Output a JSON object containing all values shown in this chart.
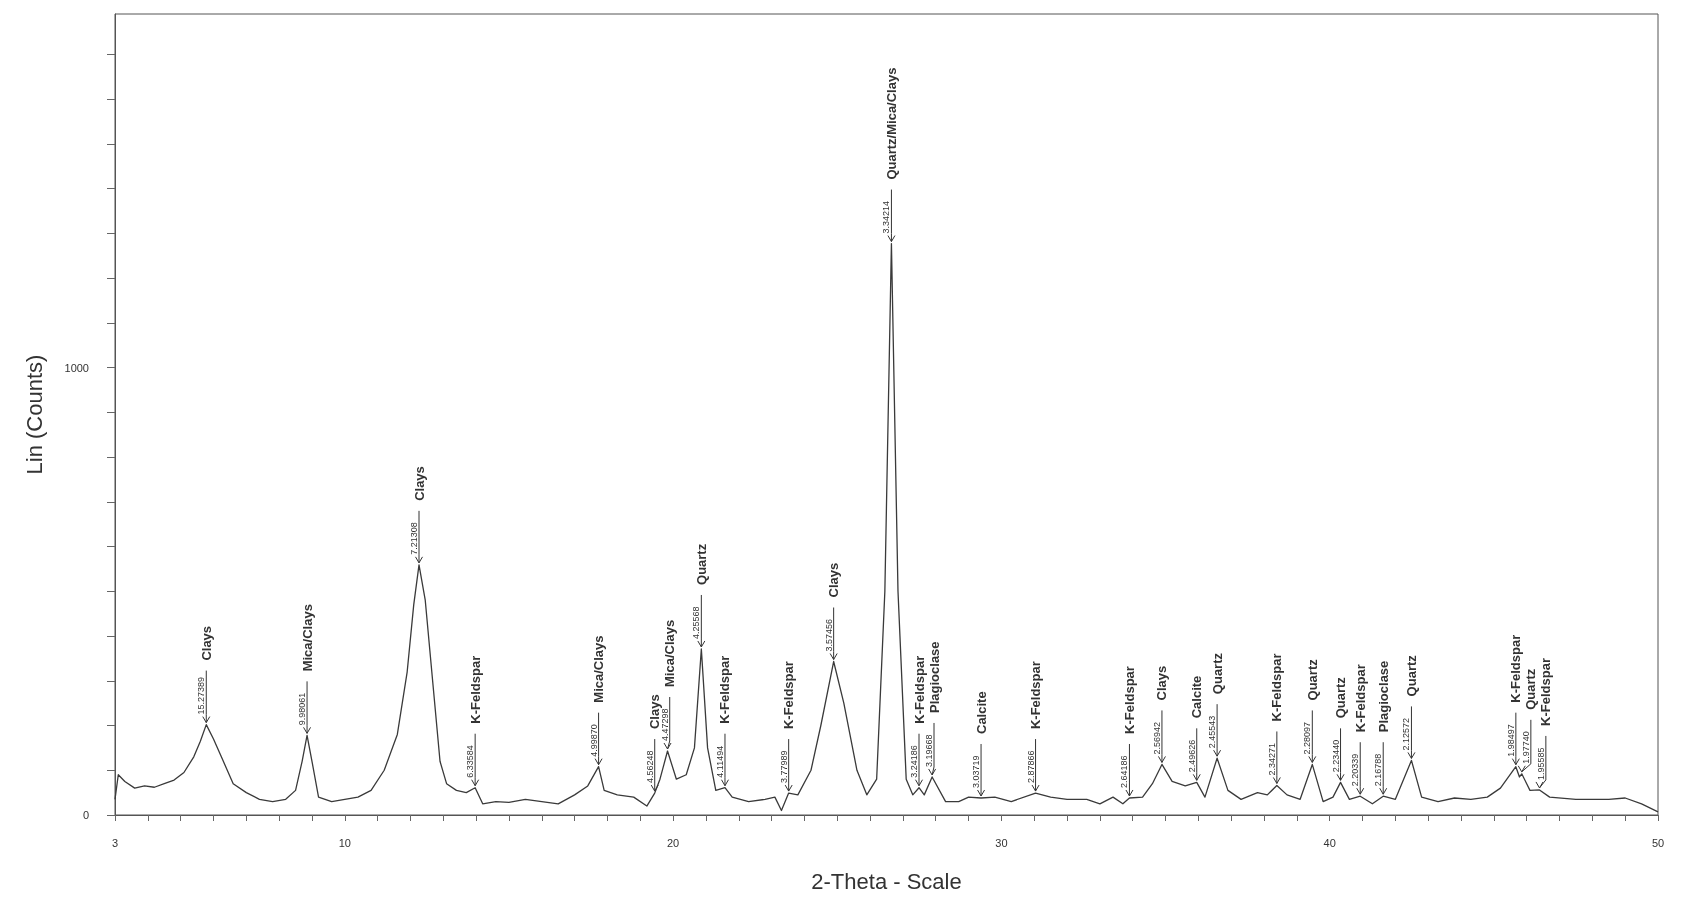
{
  "chart_data": {
    "type": "line",
    "xlabel": "2-Theta - Scale",
    "ylabel": "Lin (Counts)",
    "color": "#3a3a3a",
    "xlim": [
      3,
      50
    ],
    "xticks": [
      3,
      {
        "value": 4,
        "label": null
      },
      {
        "value": 5,
        "label": null
      },
      {
        "value": 6,
        "label": null
      },
      {
        "value": 7,
        "label": null
      },
      {
        "value": 8,
        "label": null
      },
      {
        "value": 9,
        "label": null
      },
      10,
      {
        "value": 11,
        "label": null
      },
      {
        "value": 12,
        "label": null
      },
      {
        "value": 13,
        "label": null
      },
      {
        "value": 14,
        "label": null
      },
      {
        "value": 15,
        "label": null
      },
      {
        "value": 16,
        "label": null
      },
      {
        "value": 17,
        "label": null
      },
      {
        "value": 18,
        "label": null
      },
      {
        "value": 19,
        "label": null
      },
      20,
      {
        "value": 21,
        "label": null
      },
      {
        "value": 22,
        "label": null
      },
      {
        "value": 23,
        "label": null
      },
      {
        "value": 24,
        "label": null
      },
      {
        "value": 25,
        "label": null
      },
      {
        "value": 26,
        "label": null
      },
      {
        "value": 27,
        "label": null
      },
      {
        "value": 28,
        "label": null
      },
      {
        "value": 29,
        "label": null
      },
      30,
      {
        "value": 31,
        "label": null
      },
      {
        "value": 32,
        "label": null
      },
      {
        "value": 33,
        "label": null
      },
      {
        "value": 34,
        "label": null
      },
      {
        "value": 35,
        "label": null
      },
      {
        "value": 36,
        "label": null
      },
      {
        "value": 37,
        "label": null
      },
      {
        "value": 38,
        "label": null
      },
      {
        "value": 39,
        "label": null
      },
      40,
      {
        "value": 41,
        "label": null
      },
      {
        "value": 42,
        "label": null
      },
      {
        "value": 43,
        "label": null
      },
      {
        "value": 44,
        "label": null
      },
      {
        "value": 45,
        "label": null
      },
      {
        "value": 46,
        "label": null
      },
      {
        "value": 47,
        "label": null
      },
      {
        "value": 48,
        "label": null
      },
      {
        "value": 49,
        "label": null
      },
      50
    ],
    "ylim": [
      0,
      1790
    ],
    "yticks": [
      0,
      {
        "value": 100,
        "label": null
      },
      {
        "value": 200,
        "label": null
      },
      {
        "value": 300,
        "label": null
      },
      {
        "value": 400,
        "label": null
      },
      {
        "value": 500,
        "label": null
      },
      {
        "value": 600,
        "label": null
      },
      {
        "value": 700,
        "label": null
      },
      {
        "value": 800,
        "label": null
      },
      {
        "value": 900,
        "label": null
      },
      1000,
      {
        "value": 1100,
        "label": null
      },
      {
        "value": 1200,
        "label": null
      },
      {
        "value": 1300,
        "label": null
      },
      {
        "value": 1400,
        "label": null
      },
      {
        "value": 1500,
        "label": null
      },
      {
        "value": 1600,
        "label": null
      },
      {
        "value": 1700,
        "label": null
      }
    ],
    "grid": false,
    "marker": "none",
    "line_style": "solid",
    "x": [
      3,
      3.1,
      3.3,
      3.6,
      3.9,
      4.2,
      4.5,
      4.8,
      5.1,
      5.4,
      5.6,
      5.78,
      6.0,
      6.3,
      6.6,
      7.0,
      7.4,
      7.8,
      8.2,
      8.5,
      8.7,
      8.85,
      9.0,
      9.2,
      9.6,
      10.0,
      10.4,
      10.8,
      11.2,
      11.6,
      11.9,
      12.1,
      12.26,
      12.45,
      12.7,
      12.9,
      13.1,
      13.4,
      13.7,
      13.97,
      14.2,
      14.6,
      15.0,
      15.5,
      16.0,
      16.5,
      17.0,
      17.4,
      17.73,
      17.9,
      18.3,
      18.8,
      19.2,
      19.44,
      19.6,
      19.83,
      20.1,
      20.4,
      20.65,
      20.86,
      21.05,
      21.3,
      21.58,
      21.8,
      22.3,
      22.8,
      23.1,
      23.3,
      23.52,
      23.8,
      24.2,
      24.5,
      24.89,
      25.2,
      25.6,
      25.9,
      26.2,
      26.45,
      26.65,
      26.85,
      27.1,
      27.3,
      27.49,
      27.65,
      27.89,
      28.3,
      28.7,
      29.0,
      29.38,
      29.8,
      30.3,
      31.04,
      31.5,
      32.0,
      32.6,
      33.0,
      33.4,
      33.7,
      33.9,
      34.3,
      34.6,
      34.89,
      35.2,
      35.6,
      35.95,
      36.2,
      36.57,
      36.9,
      37.3,
      37.8,
      38.1,
      38.39,
      38.7,
      39.1,
      39.47,
      39.8,
      40.1,
      40.33,
      40.6,
      40.93,
      41.3,
      41.63,
      42.0,
      42.49,
      42.8,
      43.3,
      43.8,
      44.3,
      44.8,
      45.2,
      45.67,
      45.78,
      45.85,
      46.1,
      46.39,
      46.7,
      47.5,
      48.5,
      49.0,
      49.5,
      50
    ],
    "values": [
      35,
      90,
      75,
      60,
      65,
      62,
      70,
      78,
      95,
      130,
      165,
      202,
      170,
      120,
      70,
      50,
      35,
      30,
      35,
      55,
      120,
      178,
      120,
      40,
      30,
      35,
      40,
      55,
      100,
      180,
      320,
      470,
      559,
      480,
      280,
      120,
      70,
      55,
      50,
      61,
      25,
      30,
      28,
      35,
      30,
      25,
      45,
      65,
      108,
      55,
      45,
      40,
      20,
      49,
      80,
      143,
      80,
      90,
      150,
      371,
      150,
      55,
      61,
      40,
      30,
      35,
      40,
      10,
      49,
      45,
      100,
      200,
      343,
      250,
      100,
      45,
      80,
      500,
      1277,
      500,
      80,
      45,
      61,
      45,
      85,
      30,
      30,
      40,
      38,
      40,
      30,
      49,
      40,
      35,
      35,
      25,
      40,
      25,
      38,
      40,
      70,
      113,
      75,
      65,
      73,
      40,
      127,
      55,
      35,
      50,
      45,
      66,
      45,
      35,
      113,
      30,
      40,
      73,
      35,
      42,
      25,
      42,
      35,
      122,
      40,
      30,
      38,
      35,
      40,
      60,
      108,
      85,
      92,
      55,
      56,
      40,
      35,
      35,
      38,
      25,
      7
    ],
    "annotations": [
      {
        "text": "15.27389",
        "x": 5.78,
        "y": 202
      },
      {
        "text": "Clays",
        "x": 5.78,
        "y": 202
      },
      {
        "text": "9.98061",
        "x": 8.85,
        "y": 178
      },
      {
        "text": "Mica/Clays",
        "x": 8.85,
        "y": 178
      },
      {
        "text": "7.21308",
        "x": 12.26,
        "y": 559
      },
      {
        "text": "Clays",
        "x": 12.26,
        "y": 559
      },
      {
        "text": "6.33584",
        "x": 13.97,
        "y": 61
      },
      {
        "text": "K-Feldspar",
        "x": 13.97,
        "y": 61
      },
      {
        "text": "4.99870",
        "x": 17.73,
        "y": 108
      },
      {
        "text": "Mica/Clays",
        "x": 17.73,
        "y": 108
      },
      {
        "text": "4.56248",
        "x": 19.44,
        "y": 49
      },
      {
        "text": "Clays",
        "x": 19.44,
        "y": 49
      },
      {
        "text": "4.47298",
        "x": 19.83,
        "y": 143
      },
      {
        "text": "Mica/Clays",
        "x": 19.83,
        "y": 143
      },
      {
        "text": "4.25568",
        "x": 20.86,
        "y": 371
      },
      {
        "text": "Quartz",
        "x": 20.86,
        "y": 371
      },
      {
        "text": "4.11494",
        "x": 21.58,
        "y": 61
      },
      {
        "text": "K-Feldspar",
        "x": 21.58,
        "y": 61
      },
      {
        "text": "3.77989",
        "x": 23.52,
        "y": 49
      },
      {
        "text": "K-Feldspar",
        "x": 23.52,
        "y": 49
      },
      {
        "text": "3.57456",
        "x": 24.89,
        "y": 343
      },
      {
        "text": "Clays",
        "x": 24.89,
        "y": 343
      },
      {
        "text": "3.34214",
        "x": 26.65,
        "y": 1277
      },
      {
        "text": "Quartz/Mica/Clays",
        "x": 26.65,
        "y": 1277
      },
      {
        "text": "3.24186",
        "x": 27.49,
        "y": 61
      },
      {
        "text": "K-Feldspar",
        "x": 27.49,
        "y": 61
      },
      {
        "text": "3.19668",
        "x": 27.89,
        "y": 85
      },
      {
        "text": "Plagioclase",
        "x": 27.89,
        "y": 85
      },
      {
        "text": "3.03719",
        "x": 29.38,
        "y": 38
      },
      {
        "text": "Calcite",
        "x": 29.38,
        "y": 38
      },
      {
        "text": "2.87866",
        "x": 31.04,
        "y": 49
      },
      {
        "text": "K-Feldspar",
        "x": 31.04,
        "y": 49
      },
      {
        "text": "2.64186",
        "x": 33.9,
        "y": 38
      },
      {
        "text": "K-Feldspar",
        "x": 33.9,
        "y": 38
      },
      {
        "text": "2.56942",
        "x": 34.89,
        "y": 113
      },
      {
        "text": "Clays",
        "x": 34.89,
        "y": 113
      },
      {
        "text": "2.49626",
        "x": 35.95,
        "y": 73
      },
      {
        "text": "Calcite",
        "x": 35.95,
        "y": 73
      },
      {
        "text": "2.45543",
        "x": 36.57,
        "y": 127
      },
      {
        "text": "Quartz",
        "x": 36.57,
        "y": 127
      },
      {
        "text": "2.34271",
        "x": 38.39,
        "y": 66
      },
      {
        "text": "K-Feldspar",
        "x": 38.39,
        "y": 66
      },
      {
        "text": "2.28097",
        "x": 39.47,
        "y": 113
      },
      {
        "text": "Quartz",
        "x": 39.47,
        "y": 113
      },
      {
        "text": "2.23440",
        "x": 40.33,
        "y": 73
      },
      {
        "text": "Quartz",
        "x": 40.33,
        "y": 73
      },
      {
        "text": "2.20339",
        "x": 40.93,
        "y": 42
      },
      {
        "text": "K-Feldspar",
        "x": 40.93,
        "y": 42
      },
      {
        "text": "2.16788",
        "x": 41.63,
        "y": 42
      },
      {
        "text": "Plagioclase",
        "x": 41.63,
        "y": 42
      },
      {
        "text": "2.12572",
        "x": 42.49,
        "y": 122
      },
      {
        "text": "Quartz",
        "x": 42.49,
        "y": 122
      },
      {
        "text": "1.98497",
        "x": 45.67,
        "y": 108
      },
      {
        "text": "K-Feldspar",
        "x": 45.67,
        "y": 108
      },
      {
        "text": "1.97740",
        "x": 45.85,
        "y": 92
      },
      {
        "text": "Quartz",
        "x": 45.85,
        "y": 92
      },
      {
        "text": "1.95585",
        "x": 46.39,
        "y": 56
      },
      {
        "text": "K-Feldspar",
        "x": 46.39,
        "y": 56
      }
    ]
  }
}
